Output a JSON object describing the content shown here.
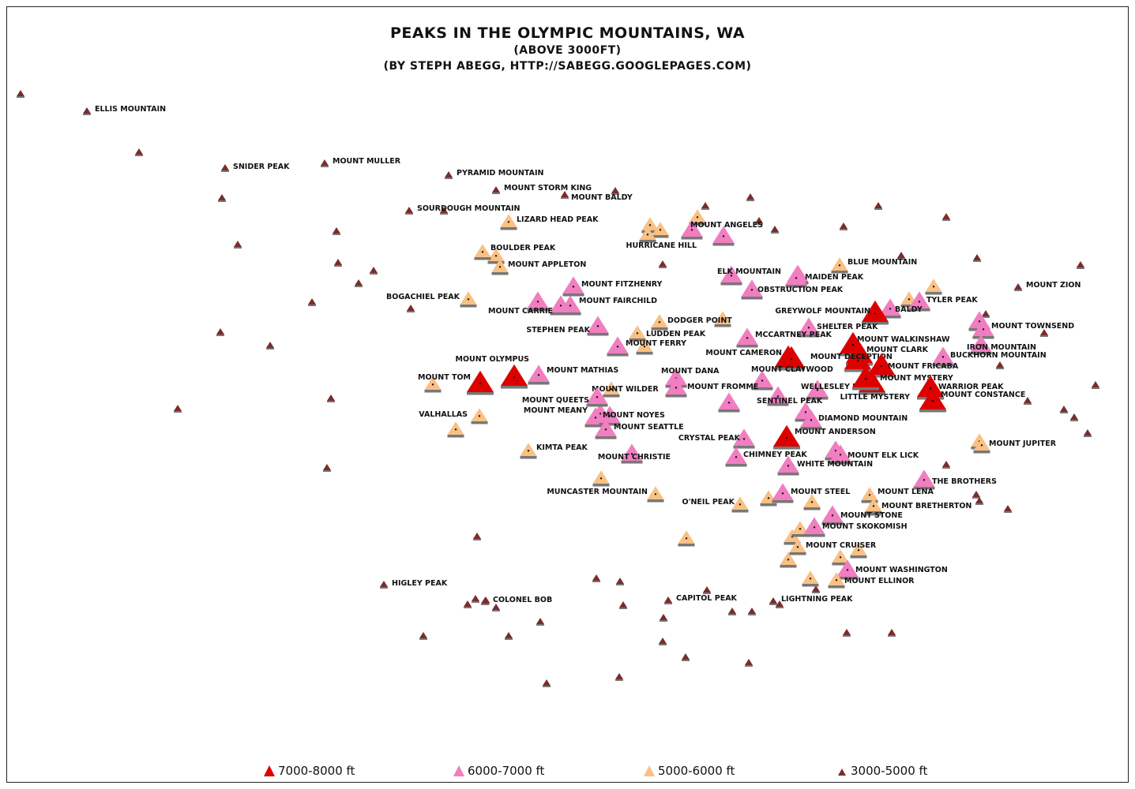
{
  "title": "PEAKS IN THE OLYMPIC MOUNTAINS, WA",
  "subtitle": "(ABOVE 3000FT)",
  "credit": "(BY STEPH ABEGG, HTTP://SABEGG.GOOGLEPAGES.COM)",
  "colors": {
    "c7000": "#dd0000",
    "c6000": "#f07ec0",
    "c5000": "#f9c184",
    "c3000": "#7a2c2c",
    "shadow": "#777777"
  },
  "legend": [
    {
      "label": "7000-8000 ft",
      "cat": "c7000"
    },
    {
      "label": "6000-7000 ft",
      "cat": "c6000"
    },
    {
      "label": "5000-6000 ft",
      "cat": "c5000"
    },
    {
      "label": "3000-5000 ft",
      "cat": "c3000"
    }
  ],
  "peaks": [
    {
      "name": "ELLIS MOUNTAIN",
      "cat": "c3000"
    },
    {
      "name": "SNIDER PEAK",
      "cat": "c3000"
    },
    {
      "name": "MOUNT MULLER",
      "cat": "c3000"
    },
    {
      "name": "PYRAMID MOUNTAIN",
      "cat": "c3000"
    },
    {
      "name": "MOUNT STORM KING",
      "cat": "c3000"
    },
    {
      "name": "MOUNT BALDY",
      "cat": "c3000"
    },
    {
      "name": "SOURDOUGH MOUNTAIN",
      "cat": "c3000"
    },
    {
      "name": "LIZARD HEAD PEAK",
      "cat": "c5000"
    },
    {
      "name": "MOUNT ANGELES",
      "cat": "c6000"
    },
    {
      "name": "HURRICANE HILL",
      "cat": "c5000"
    },
    {
      "name": "BOULDER PEAK",
      "cat": "c5000"
    },
    {
      "name": "MOUNT APPLETON",
      "cat": "c5000"
    },
    {
      "name": "BLUE MOUNTAIN",
      "cat": "c5000"
    },
    {
      "name": "ELK MOUNTAIN",
      "cat": "c6000"
    },
    {
      "name": "MAIDEN PEAK",
      "cat": "c6000"
    },
    {
      "name": "MOUNT FITZHENRY",
      "cat": "c6000"
    },
    {
      "name": "OBSTRUCTION PEAK",
      "cat": "c6000"
    },
    {
      "name": "MOUNT ZION",
      "cat": "c3000"
    },
    {
      "name": "BOGACHIEL PEAK",
      "cat": "c5000"
    },
    {
      "name": "MOUNT FAIRCHILD",
      "cat": "c6000"
    },
    {
      "name": "TYLER PEAK",
      "cat": "c6000"
    },
    {
      "name": "MOUNT CARRIE",
      "cat": "c6000"
    },
    {
      "name": "BALDY",
      "cat": "c6000"
    },
    {
      "name": "GREYWOLF MOUNTAIN",
      "cat": "c7000"
    },
    {
      "name": "DODGER POINT",
      "cat": "c5000"
    },
    {
      "name": "STEPHEN PEAK",
      "cat": "c6000"
    },
    {
      "name": "SHELTER PEAK",
      "cat": "c6000"
    },
    {
      "name": "MOUNT TOWNSEND",
      "cat": "c6000"
    },
    {
      "name": "LUDDEN PEAK",
      "cat": "c5000"
    },
    {
      "name": "MCCARTNEY PEAK",
      "cat": "c6000"
    },
    {
      "name": "MOUNT WALKINSHAW",
      "cat": "c7000"
    },
    {
      "name": "MOUNT FERRY",
      "cat": "c6000"
    },
    {
      "name": "IRON MOUNTAIN",
      "cat": "c6000"
    },
    {
      "name": "MOUNT CLARK",
      "cat": "c7000"
    },
    {
      "name": "MOUNT CAMERON",
      "cat": "c7000"
    },
    {
      "name": "BUCKHORN MOUNTAIN",
      "cat": "c6000"
    },
    {
      "name": "MOUNT DECEPTION",
      "cat": "c7000"
    },
    {
      "name": "MOUNT OLYMPUS",
      "cat": "c7000"
    },
    {
      "name": "MOUNT FRICABA",
      "cat": "c7000"
    },
    {
      "name": "MOUNT MATHIAS",
      "cat": "c6000"
    },
    {
      "name": "MOUNT DANA",
      "cat": "c6000"
    },
    {
      "name": "MOUNT CLAYWOOD",
      "cat": "c6000"
    },
    {
      "name": "MOUNT TOM",
      "cat": "c7000"
    },
    {
      "name": "MOUNT MYSTERY",
      "cat": "c7000"
    },
    {
      "name": "WARRIOR PEAK",
      "cat": "c7000"
    },
    {
      "name": "MOUNT FROMME",
      "cat": "c6000"
    },
    {
      "name": "WELLESLEY PEAK",
      "cat": "c6000"
    },
    {
      "name": "MOUNT WILDER",
      "cat": "c5000"
    },
    {
      "name": "MOUNT CONSTANCE",
      "cat": "c7000"
    },
    {
      "name": "LITTLE MYSTERY",
      "cat": "c7000"
    },
    {
      "name": "MOUNT QUEETS",
      "cat": "c6000"
    },
    {
      "name": "SENTINEL PEAK",
      "cat": "c6000"
    },
    {
      "name": "MOUNT MEANY",
      "cat": "c6000"
    },
    {
      "name": "VALHALLAS",
      "cat": "c5000"
    },
    {
      "name": "MOUNT NOYES",
      "cat": "c6000"
    },
    {
      "name": "DIAMOND MOUNTAIN",
      "cat": "c6000"
    },
    {
      "name": "MOUNT SEATTLE",
      "cat": "c6000"
    },
    {
      "name": "MOUNT ANDERSON",
      "cat": "c7000"
    },
    {
      "name": "CRYSTAL PEAK",
      "cat": "c6000"
    },
    {
      "name": "MOUNT JUPITER",
      "cat": "c5000"
    },
    {
      "name": "KIMTA PEAK",
      "cat": "c5000"
    },
    {
      "name": "CHIMNEY PEAK",
      "cat": "c6000"
    },
    {
      "name": "MOUNT CHRISTIE",
      "cat": "c6000"
    },
    {
      "name": "MOUNT ELK LICK",
      "cat": "c6000"
    },
    {
      "name": "WHITE MOUNTAIN",
      "cat": "c6000"
    },
    {
      "name": "THE BROTHERS",
      "cat": "c6000"
    },
    {
      "name": "MUNCASTER MOUNTAIN",
      "cat": "c5000"
    },
    {
      "name": "MOUNT STEEL",
      "cat": "c6000"
    },
    {
      "name": "MOUNT LENA",
      "cat": "c5000"
    },
    {
      "name": "O'NEIL PEAK",
      "cat": "c5000"
    },
    {
      "name": "MOUNT BRETHERTON",
      "cat": "c5000"
    },
    {
      "name": "MOUNT STONE",
      "cat": "c6000"
    },
    {
      "name": "MOUNT SKOKOMISH",
      "cat": "c6000"
    },
    {
      "name": "MOUNT CRUISER",
      "cat": "c5000"
    },
    {
      "name": "MOUNT WASHINGTON",
      "cat": "c6000"
    },
    {
      "name": "MOUNT ELLINOR",
      "cat": "c5000"
    },
    {
      "name": "HIGLEY PEAK",
      "cat": "c3000"
    },
    {
      "name": "COLONEL BOB",
      "cat": "c3000"
    },
    {
      "name": "CAPITOL PEAK",
      "cat": "c3000"
    },
    {
      "name": "LIGHTNING PEAK",
      "cat": "c3000"
    }
  ]
}
